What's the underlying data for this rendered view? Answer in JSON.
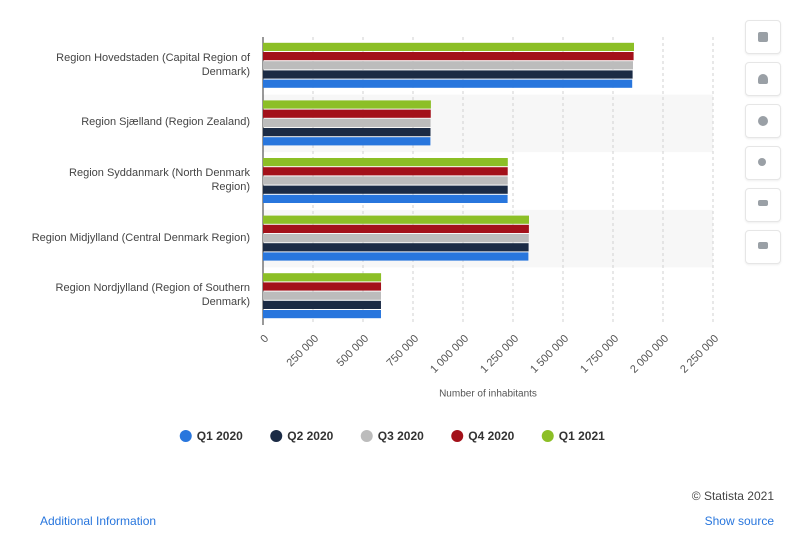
{
  "chart_data": {
    "type": "bar",
    "orientation": "horizontal",
    "categories": [
      "Region Hovedstaden (Capital Region of Denmark)",
      "Region Sjælland (Region Zealand)",
      "Region Syddanmark (North Denmark Region)",
      "Region Midjylland (Central Denmark Region)",
      "Region Nordjylland (Region of Southern Denmark)"
    ],
    "series": [
      {
        "name": "Q1 2020",
        "color": "#2876dd",
        "values": [
          1846000,
          837000,
          1223000,
          1327000,
          589900
        ]
      },
      {
        "name": "Q2 2020",
        "color": "#1b2b45",
        "values": [
          1848000,
          837500,
          1223500,
          1328000,
          589800
        ]
      },
      {
        "name": "Q3 2020",
        "color": "#bcbcbc",
        "values": [
          1850000,
          838000,
          1223600,
          1329000,
          589900
        ]
      },
      {
        "name": "Q4 2020",
        "color": "#a3111a",
        "values": [
          1853000,
          838800,
          1223600,
          1329500,
          590200
        ]
      },
      {
        "name": "Q1 2021",
        "color": "#8cbf26",
        "values": [
          1855000,
          839500,
          1224000,
          1330000,
          590400
        ]
      }
    ],
    "xlabel": "Number of inhabitants",
    "xlim": [
      0,
      2250000
    ],
    "xticks": [
      0,
      {
        "value": 250000,
        "label": "250 000"
      },
      {
        "value": 500000,
        "label": "500 000"
      },
      {
        "value": 750000,
        "label": "750 000"
      },
      {
        "value": 1000000,
        "label": "1 000 000"
      },
      {
        "value": 1250000,
        "label": "1 250 000"
      },
      {
        "value": 1500000,
        "label": "1 500 000"
      },
      {
        "value": 1750000,
        "label": "1 750 000"
      },
      {
        "value": 2000000,
        "label": "2 000 000"
      },
      {
        "value": 2250000,
        "label": "2 250 000"
      }
    ],
    "grid": true
  },
  "footer": {
    "copyright": "© Statista 2021",
    "additional_info": "Additional Information",
    "show_source": "Show source"
  }
}
